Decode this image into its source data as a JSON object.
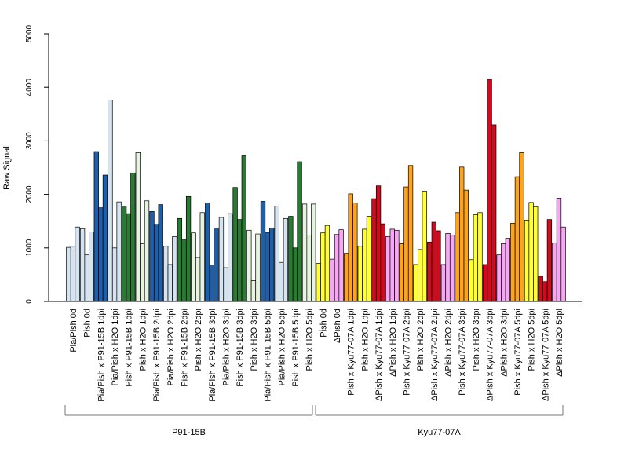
{
  "chart_data": {
    "type": "bar",
    "ylabel": "Raw Signal",
    "xlabel": "",
    "ylim": [
      0,
      5000
    ],
    "yticks": [
      0,
      1000,
      2000,
      3000,
      4000,
      5000
    ],
    "grid": false,
    "legend": "none",
    "colors": {
      "pale_blue": "#d6e4f2",
      "blue": "#1f5ea8",
      "green": "#2a7a34",
      "pale_green": "#e6f3e0",
      "yellow": "#ffff33",
      "pink": "#f6a6f3",
      "orange": "#ffa31a",
      "red": "#d20a1e"
    },
    "categories": [
      "Pia/Pish 0d",
      "Pish 0d",
      "Pia/Pish x P91-15B 1dpi",
      "Pia/Pish x H2O 1dpi",
      "Pish x P91-15B 1dpi",
      "Pish x H2O 1dpi",
      "Pia/Pish x P91-15B 2dpi",
      "Pia/Pish x H2O 2dpi",
      "Pish x P91-15B 2dpi",
      "Pish x H2O 2dpi",
      "Pia/Pish x P91-15B 3dpi",
      "Pia/Pish x H2O 3dpi",
      "Pish x P91-15B 3dpi",
      "Pish x H2O 3dpi",
      "Pia/Pish x P91-15B 5dpi",
      "Pia/Pish x H2O 5dpi",
      "Pish x P91-15B 5dpi",
      "Pish x H2O 5dpi",
      "Pish 0d",
      "ΔPish 0d",
      "Pish x Kyu77-07A 1dpi",
      "Pish x H2O 1dpi",
      "ΔPish x Kyu77-07A 1dpi",
      "ΔPish x H2O 1dpi",
      "Pish x Kyu77-07A 2dpi",
      "Pish x H2O 2dpi",
      "ΔPish x Kyu77-07A 2dpi",
      "ΔPish x H2O 2dpi",
      "Pish x Kyu77-07A 3dpi",
      "Pish x H2O 3dpi",
      "ΔPish x Kyu77-07A 3dpi",
      "ΔPish x H2O 3dpi",
      "Pish x Kyu77-07A 5dpi",
      "Pish x H2O 5dpi",
      "ΔPish x Kyu77-07A 5dpi",
      "ΔPish x H2O 5dpi"
    ],
    "category_colors": [
      "pale_blue",
      "pale_blue",
      "blue",
      "pale_blue",
      "green",
      "pale_green",
      "blue",
      "pale_blue",
      "green",
      "pale_green",
      "blue",
      "pale_blue",
      "green",
      "pale_green",
      "blue",
      "pale_blue",
      "green",
      "pale_green",
      "yellow",
      "pink",
      "orange",
      "yellow",
      "red",
      "pink",
      "orange",
      "yellow",
      "red",
      "pink",
      "orange",
      "yellow",
      "red",
      "pink",
      "orange",
      "yellow",
      "red",
      "pink"
    ],
    "values": [
      [
        1010,
        1030,
        1390
      ],
      [
        1360,
        870,
        1300
      ],
      [
        2800,
        1750,
        2360
      ],
      [
        3760,
        1000,
        1860
      ],
      [
        1780,
        1640,
        2400
      ],
      [
        2780,
        1080,
        1880
      ],
      [
        1680,
        1440,
        1810
      ],
      [
        1030,
        690,
        1210
      ],
      [
        1550,
        1150,
        1960
      ],
      [
        1280,
        820,
        1660
      ],
      [
        1840,
        680,
        1370
      ],
      [
        1570,
        630,
        1640
      ],
      [
        2130,
        1530,
        2720
      ],
      [
        1330,
        390,
        1260
      ],
      [
        1870,
        1290,
        1370
      ],
      [
        1780,
        730,
        1550
      ],
      [
        1590,
        1000,
        2610
      ],
      [
        1820,
        1240,
        1820
      ],
      [
        710,
        1280,
        1420
      ],
      [
        790,
        1250,
        1340
      ],
      [
        900,
        2010,
        1840
      ],
      [
        1030,
        1350,
        1590
      ],
      [
        1920,
        2160,
        1450
      ],
      [
        1210,
        1350,
        1330
      ],
      [
        1080,
        2140,
        2540
      ],
      [
        690,
        970,
        2060
      ],
      [
        1110,
        1480,
        1320
      ],
      [
        690,
        1270,
        1240
      ],
      [
        1660,
        2510,
        2080
      ],
      [
        780,
        1620,
        1660
      ],
      [
        690,
        4150,
        3300
      ],
      [
        870,
        1080,
        1180
      ],
      [
        1460,
        2330,
        2780
      ],
      [
        1520,
        1850,
        1770
      ],
      [
        470,
        370,
        1530
      ],
      [
        1090,
        1930,
        1390
      ]
    ],
    "groups": [
      {
        "label": "P91-15B",
        "from": 0,
        "to": 17
      },
      {
        "label": "Kyu77-07A",
        "from": 18,
        "to": 35
      }
    ]
  }
}
